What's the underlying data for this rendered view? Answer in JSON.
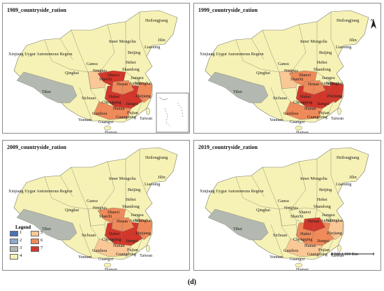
{
  "panels": [
    {
      "title": "1989_countryside_ration",
      "inset": true,
      "north": false,
      "legend": false,
      "scale": false
    },
    {
      "title": "1999_countryside_ration",
      "inset": false,
      "north": true,
      "legend": false,
      "scale": false
    },
    {
      "title": "2009_countryside_ration",
      "inset": false,
      "north": false,
      "legend": true,
      "scale": false
    },
    {
      "title": "2019_countryside_ration",
      "inset": false,
      "north": false,
      "legend": false,
      "scale": true
    }
  ],
  "labels": {
    "heilongjiang": "Heilongjiang",
    "jilin": "Jilin",
    "liaoning": "Liaoning",
    "inner_mongolia": "Inner Mongolia",
    "xinjiang": "Xinjiang Uygur Autonomous Region",
    "beijing": "Beijing",
    "hebei": "Hebei",
    "shandong": "Shandong",
    "gansu": "Gansu",
    "ningxia": "Ningxia",
    "shanxi": "Shanxi",
    "shaanxi": "ShanXi",
    "qinghai": "Qinghai",
    "tibet": "Tibet",
    "henan": "Henan",
    "jiangsu": "Jiangsu",
    "anhui": "Anhui",
    "shanghai": "Shanghai",
    "sichuan": "Sichuan",
    "hubei": "Hubei",
    "chongqing": "Chongqing",
    "zhejiang": "Zhejiang",
    "hunan": "Hunan",
    "jiangxi": "Jiangxi",
    "fujian": "Fujian",
    "guizhou": "Guizhou",
    "yunnan": "Yunnan",
    "guangxi": "Guangxi",
    "guangdong": "Guangdong",
    "taiwan": "Taiwan",
    "hainan": "Hainan"
  },
  "legend": {
    "title": "Legend",
    "items": [
      {
        "label": "1",
        "color": "#4a72b0"
      },
      {
        "label": "2",
        "color": "#8fa9cf"
      },
      {
        "label": "3",
        "color": "#b3b9b0"
      },
      {
        "label": "4",
        "color": "#f6f2b5"
      },
      {
        "label": "5",
        "color": "#f9c896"
      },
      {
        "label": "6",
        "color": "#ef8a5a"
      },
      {
        "label": "7",
        "color": "#d2372c"
      }
    ]
  },
  "north_label": "N",
  "scale_text": "0    500   1,000 Km",
  "caption": "(d)",
  "colors": {
    "base": "#f6f2b5",
    "tibet": "#b3b9b0",
    "c5": "#f9c896",
    "c6": "#ef8a5a",
    "c7": "#d2372c",
    "border": "#8a8a8a",
    "province_line": "#7a7a6a"
  }
}
